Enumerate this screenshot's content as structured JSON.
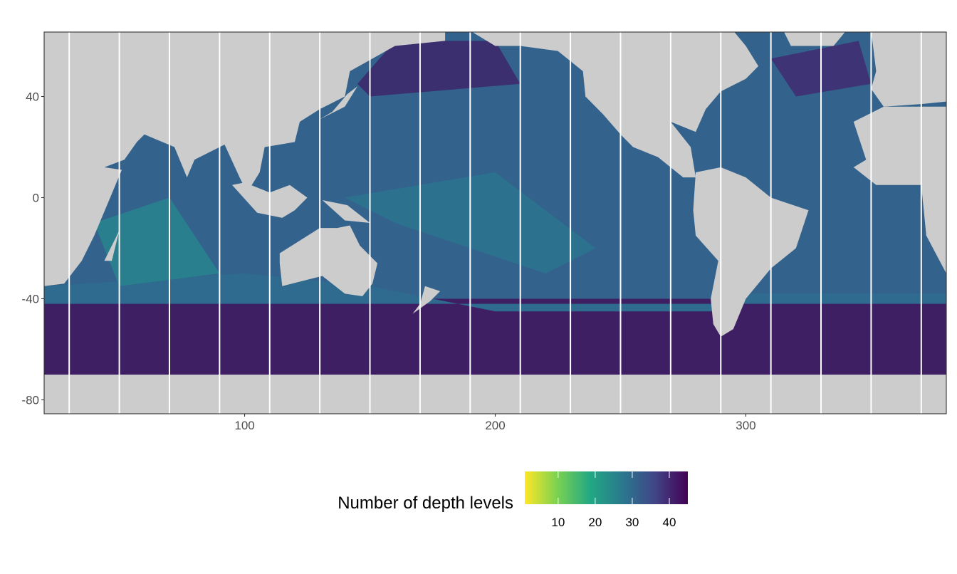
{
  "chart_data": {
    "type": "heatmap",
    "title": "",
    "xlabel": "",
    "ylabel": "",
    "xlim": [
      20,
      380
    ],
    "ylim": [
      -85.5,
      65.5
    ],
    "x_ticks": [
      100,
      200,
      300
    ],
    "y_ticks": [
      40,
      0,
      -40,
      -80
    ],
    "x_tick_labels": [
      "100",
      "200",
      "300"
    ],
    "y_tick_labels": [
      "40",
      "0",
      "-40",
      "-80"
    ],
    "vertical_lines": [
      30,
      50,
      70,
      90,
      110,
      130,
      150,
      170,
      190,
      210,
      230,
      250,
      270,
      290,
      310,
      330,
      350,
      370
    ],
    "vertical_line_color": "#ffffff",
    "land_color": "#cccccc",
    "missing_color": "#ffffff",
    "grid": false,
    "legend": {
      "title": "Number of depth levels",
      "placement": "bottom",
      "colormap": "viridis (reversed)",
      "range": [
        1,
        45
      ],
      "ticks": [
        10,
        20,
        30,
        40
      ],
      "tick_labels": [
        "10",
        "20",
        "30",
        "40"
      ]
    },
    "description_values": {
      "southern_ocean_band": "approx. 40-45 levels",
      "open_ocean": "approx. 28-35 levels",
      "coastal_shelves": "approx. 1-15 levels"
    }
  }
}
